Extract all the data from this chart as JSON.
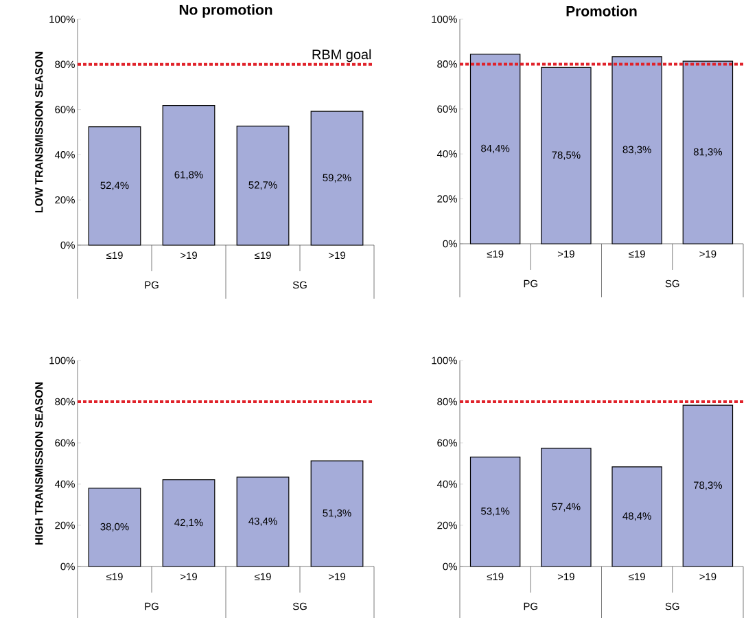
{
  "chart_data": [
    {
      "type": "bar",
      "title": "No promotion",
      "ylabel": "LOW TRANSMISSION SEASON",
      "categories": [
        "≤19",
        ">19",
        "≤19",
        ">19"
      ],
      "values": [
        52.4,
        61.8,
        52.7,
        59.2
      ],
      "value_labels": [
        "52,4%",
        "61,8%",
        "52,7%",
        "59,2%"
      ],
      "color": "#a5acd9",
      "ylim": [
        0,
        100
      ],
      "yticks": [
        {
          "value": 0,
          "label": "0%"
        },
        {
          "value": 20,
          "label": "20%"
        },
        {
          "value": 40,
          "label": "40%"
        },
        {
          "value": 60,
          "label": "60%"
        },
        {
          "value": 80,
          "label": "80%"
        },
        {
          "value": 100,
          "label": "100%"
        }
      ],
      "ref_lines": [
        {
          "axis": "y",
          "value": 80,
          "label": "RBM goal",
          "color": "#e0222a",
          "line_style": "dotted"
        }
      ],
      "annotations": [
        "PG",
        "SG"
      ]
    },
    {
      "type": "bar",
      "title": "Promotion",
      "categories": [
        "≤19",
        ">19",
        "≤19",
        ">19"
      ],
      "values": [
        84.4,
        78.5,
        83.3,
        81.3
      ],
      "value_labels": [
        "84,4%",
        "78,5%",
        "83,3%",
        "81,3%"
      ],
      "color": "#a5acd9",
      "ylim": [
        0,
        100
      ],
      "yticks": [
        {
          "value": 0,
          "label": "0%"
        },
        {
          "value": 20,
          "label": "20%"
        },
        {
          "value": 40,
          "label": "40%"
        },
        {
          "value": 60,
          "label": "60%"
        },
        {
          "value": 80,
          "label": "80%"
        },
        {
          "value": 100,
          "label": "100%"
        }
      ],
      "ref_lines": [
        {
          "axis": "y",
          "value": 80,
          "color": "#e0222a",
          "line_style": "dotted"
        }
      ],
      "annotations": [
        "PG",
        "SG"
      ]
    },
    {
      "type": "bar",
      "ylabel": "HIGH TRANSMISSION SEASON",
      "categories": [
        "≤19",
        ">19",
        "≤19",
        ">19"
      ],
      "values": [
        38.0,
        42.1,
        43.4,
        51.3
      ],
      "value_labels": [
        "38,0%",
        "42,1%",
        "43,4%",
        "51,3%"
      ],
      "color": "#a5acd9",
      "ylim": [
        0,
        100
      ],
      "yticks": [
        {
          "value": 0,
          "label": "0%"
        },
        {
          "value": 20,
          "label": "20%"
        },
        {
          "value": 40,
          "label": "40%"
        },
        {
          "value": 60,
          "label": "60%"
        },
        {
          "value": 80,
          "label": "80%"
        },
        {
          "value": 100,
          "label": "100%"
        }
      ],
      "ref_lines": [
        {
          "axis": "y",
          "value": 80,
          "color": "#e0222a",
          "line_style": "dotted"
        }
      ],
      "annotations": [
        "PG",
        "SG"
      ]
    },
    {
      "type": "bar",
      "categories": [
        "≤19",
        ">19",
        "≤19",
        ">19"
      ],
      "values": [
        53.1,
        57.4,
        48.4,
        78.3
      ],
      "value_labels": [
        "53,1%",
        "57,4%",
        "48,4%",
        "78,3%"
      ],
      "color": "#a5acd9",
      "ylim": [
        0,
        100
      ],
      "yticks": [
        {
          "value": 0,
          "label": "0%"
        },
        {
          "value": 20,
          "label": "20%"
        },
        {
          "value": 40,
          "label": "40%"
        },
        {
          "value": 60,
          "label": "60%"
        },
        {
          "value": 80,
          "label": "80%"
        },
        {
          "value": 100,
          "label": "100%"
        }
      ],
      "ref_lines": [
        {
          "axis": "y",
          "value": 80,
          "color": "#e0222a",
          "line_style": "dotted"
        }
      ],
      "annotations": [
        "PG",
        "SG"
      ]
    }
  ]
}
